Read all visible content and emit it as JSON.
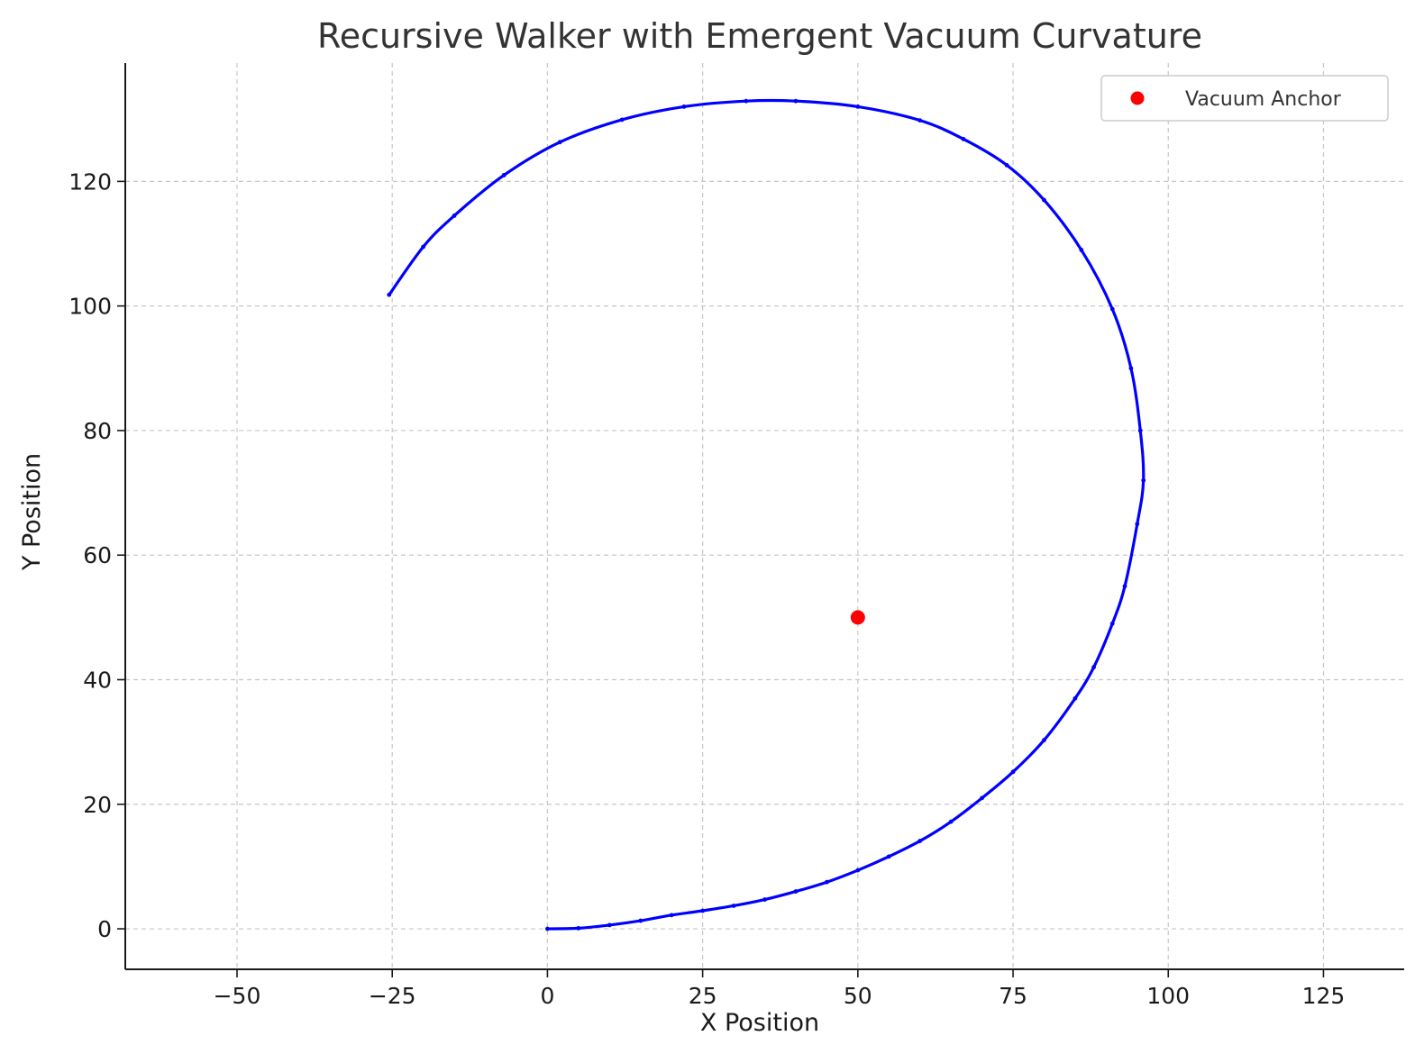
{
  "chart_data": {
    "type": "scatter",
    "title": "Recursive Walker with Emergent Vacuum Curvature",
    "xlabel": "X Position",
    "ylabel": "Y Position",
    "xlim": [
      -68,
      138
    ],
    "ylim": [
      -6.5,
      139
    ],
    "x_ticks": [
      -50,
      -25,
      0,
      25,
      50,
      75,
      100,
      125
    ],
    "y_ticks": [
      0,
      20,
      40,
      60,
      80,
      100,
      120
    ],
    "x_tick_labels": [
      "−50",
      "−25",
      "0",
      "25",
      "50",
      "75",
      "100",
      "125"
    ],
    "y_tick_labels": [
      "0",
      "20",
      "40",
      "60",
      "80",
      "100",
      "120"
    ],
    "grid": true,
    "legend_position": "top-right",
    "series": [
      {
        "type": "line",
        "color": "#0000ff",
        "marker": "dot",
        "points": [
          [
            0,
            0
          ],
          [
            5,
            0.1
          ],
          [
            10,
            0.6
          ],
          [
            15,
            1.3
          ],
          [
            20,
            2.2
          ],
          [
            25,
            2.9
          ],
          [
            30,
            3.7
          ],
          [
            35,
            4.7
          ],
          [
            40,
            6.0
          ],
          [
            45,
            7.5
          ],
          [
            50,
            9.4
          ],
          [
            55,
            11.6
          ],
          [
            60,
            14.1
          ],
          [
            65,
            17.2
          ],
          [
            70,
            21.0
          ],
          [
            75,
            25.2
          ],
          [
            80,
            30.3
          ],
          [
            85,
            37.0
          ],
          [
            88,
            42.0
          ],
          [
            91,
            49.0
          ],
          [
            93,
            55.0
          ],
          [
            95,
            65.0
          ],
          [
            96,
            72.0
          ],
          [
            95.5,
            80.0
          ],
          [
            94,
            90.0
          ],
          [
            91,
            99.5
          ],
          [
            86,
            109.0
          ],
          [
            80,
            117.0
          ],
          [
            74,
            122.6
          ],
          [
            67,
            126.8
          ],
          [
            60,
            129.8
          ],
          [
            50,
            132.0
          ],
          [
            40,
            132.9
          ],
          [
            32,
            132.9
          ],
          [
            22,
            132.0
          ],
          [
            12,
            129.9
          ],
          [
            2,
            126.3
          ],
          [
            -7,
            121.0
          ],
          [
            -15,
            114.5
          ],
          [
            -20,
            109.5
          ],
          [
            -25.5,
            101.8
          ]
        ]
      },
      {
        "name": "Vacuum Anchor",
        "type": "scatter",
        "color": "#ff0000",
        "points": [
          [
            50,
            50
          ]
        ]
      }
    ]
  }
}
